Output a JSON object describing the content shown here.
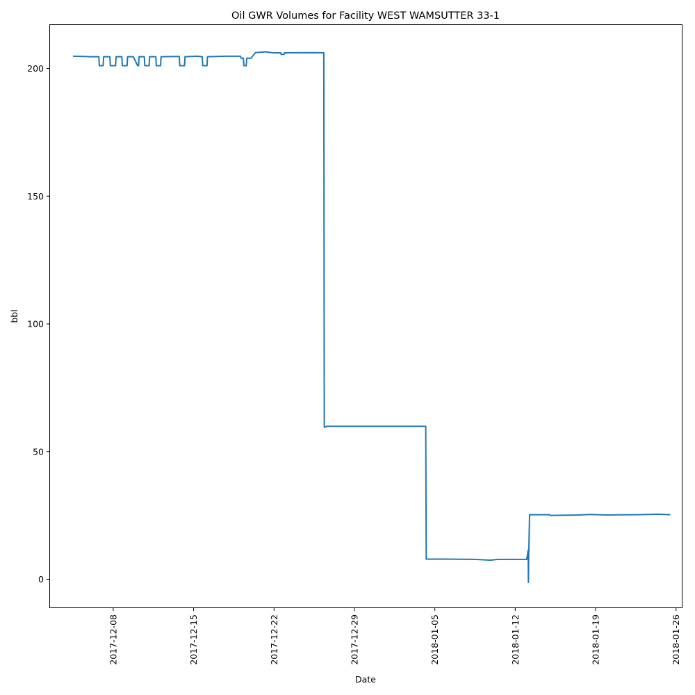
{
  "chart_data": {
    "type": "line",
    "title": "Oil GWR Volumes for Facility WEST WAMSUTTER 33-1",
    "xlabel": "Date",
    "ylabel": "bbl",
    "x_range": [
      "2017-12-02T12:00",
      "2018-01-26T12:00"
    ],
    "ylim": [
      -11,
      217
    ],
    "grid": false,
    "legend": "none",
    "x_ticks": [
      "2017-12-08",
      "2017-12-15",
      "2017-12-22",
      "2017-12-29",
      "2018-01-05",
      "2018-01-12",
      "2018-01-19",
      "2018-01-26"
    ],
    "y_ticks": [
      "0",
      "50",
      "100",
      "150",
      "200"
    ],
    "series": [
      {
        "color": "#1f77b4",
        "points": [
          [
            "2017-12-04T12:00",
            204.8
          ],
          [
            "2017-12-05T12:00",
            204.7
          ],
          [
            "2017-12-06T00:00",
            204.6
          ],
          [
            "2017-12-06T18:00",
            204.6
          ],
          [
            "2017-12-06T19:00",
            201.1
          ],
          [
            "2017-12-07T03:00",
            201.1
          ],
          [
            "2017-12-07T04:00",
            204.6
          ],
          [
            "2017-12-07T17:00",
            204.6
          ],
          [
            "2017-12-07T18:00",
            201.1
          ],
          [
            "2017-12-08T05:00",
            201.1
          ],
          [
            "2017-12-08T06:00",
            204.6
          ],
          [
            "2017-12-08T18:00",
            204.6
          ],
          [
            "2017-12-08T19:00",
            201.1
          ],
          [
            "2017-12-09T05:00",
            201.1
          ],
          [
            "2017-12-09T06:00",
            204.6
          ],
          [
            "2017-12-09T18:00",
            204.6
          ],
          [
            "2017-12-10T03:00",
            201.1
          ],
          [
            "2017-12-10T05:00",
            201.1
          ],
          [
            "2017-12-10T06:00",
            204.6
          ],
          [
            "2017-12-10T17:00",
            204.6
          ],
          [
            "2017-12-10T18:00",
            201.1
          ],
          [
            "2017-12-11T03:00",
            201.1
          ],
          [
            "2017-12-11T04:00",
            204.6
          ],
          [
            "2017-12-11T17:00",
            204.6
          ],
          [
            "2017-12-11T18:00",
            201.1
          ],
          [
            "2017-12-12T03:00",
            201.1
          ],
          [
            "2017-12-12T04:00",
            204.6
          ],
          [
            "2017-12-13T18:00",
            204.7
          ],
          [
            "2017-12-13T19:00",
            201.1
          ],
          [
            "2017-12-14T05:00",
            201.1
          ],
          [
            "2017-12-14T06:00",
            204.6
          ],
          [
            "2017-12-15T06:00",
            204.8
          ],
          [
            "2017-12-15T18:00",
            204.6
          ],
          [
            "2017-12-15T19:00",
            201.1
          ],
          [
            "2017-12-16T04:00",
            201.1
          ],
          [
            "2017-12-16T05:00",
            204.6
          ],
          [
            "2017-12-17T18:00",
            204.8
          ],
          [
            "2017-12-18T20:00",
            204.8
          ],
          [
            "2017-12-19T02:00",
            204.8
          ],
          [
            "2017-12-19T03:00",
            204.0
          ],
          [
            "2017-12-19T08:00",
            204.0
          ],
          [
            "2017-12-19T09:00",
            201.1
          ],
          [
            "2017-12-19T14:00",
            201.1
          ],
          [
            "2017-12-19T15:00",
            204.0
          ],
          [
            "2017-12-20T00:00",
            204.0
          ],
          [
            "2017-12-20T09:00",
            206.2
          ],
          [
            "2017-12-21T06:00",
            206.5
          ],
          [
            "2017-12-22T00:00",
            206.1
          ],
          [
            "2017-12-22T14:00",
            206.1
          ],
          [
            "2017-12-22T15:00",
            205.5
          ],
          [
            "2017-12-22T21:00",
            205.5
          ],
          [
            "2017-12-22T22:00",
            206.1
          ],
          [
            "2017-12-25T12:00",
            206.2
          ],
          [
            "2017-12-26T08:00",
            206.1
          ],
          [
            "2017-12-26T09:00",
            59.6
          ],
          [
            "2017-12-26T12:00",
            59.6
          ],
          [
            "2017-12-26T13:00",
            59.9
          ],
          [
            "2017-12-29T00:00",
            59.9
          ],
          [
            "2018-01-04T05:00",
            59.9
          ],
          [
            "2018-01-04T06:00",
            7.9
          ],
          [
            "2018-01-06T00:00",
            7.9
          ],
          [
            "2018-01-08T12:00",
            7.8
          ],
          [
            "2018-01-09T20:00",
            7.5
          ],
          [
            "2018-01-10T12:00",
            7.8
          ],
          [
            "2018-01-12T12:00",
            7.8
          ],
          [
            "2018-01-13T00:00",
            7.8
          ],
          [
            "2018-01-13T03:00",
            11.4
          ],
          [
            "2018-01-13T03:30",
            -1.2
          ],
          [
            "2018-01-13T04:00",
            7.8
          ],
          [
            "2018-01-13T06:00",
            25.3
          ],
          [
            "2018-01-15T00:00",
            25.3
          ],
          [
            "2018-01-15T02:00",
            25.0
          ],
          [
            "2018-01-17T12:00",
            25.2
          ],
          [
            "2018-01-18T12:00",
            25.4
          ],
          [
            "2018-01-20T00:00",
            25.2
          ],
          [
            "2018-01-22T12:00",
            25.3
          ],
          [
            "2018-01-24T12:00",
            25.5
          ],
          [
            "2018-01-25T12:00",
            25.3
          ]
        ]
      }
    ]
  }
}
